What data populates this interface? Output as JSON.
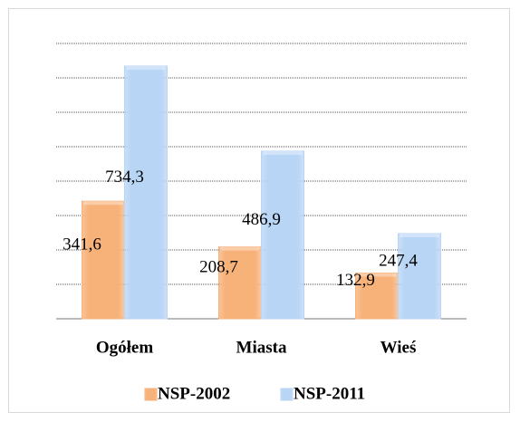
{
  "chart_data": {
    "type": "bar",
    "categories": [
      "Ogółem",
      "Miasta",
      "Wieś"
    ],
    "series": [
      {
        "name": "NSP-2002",
        "color": "#f7b27a",
        "values": [
          341.6,
          208.7,
          132.9
        ],
        "value_labels": [
          "341,6",
          "208,7",
          "132,9"
        ]
      },
      {
        "name": "NSP-2011",
        "color": "#b9d5f5",
        "values": [
          734.3,
          486.9,
          247.4
        ],
        "value_labels": [
          "734,3",
          "486,9",
          "247,4"
        ]
      }
    ],
    "ylim": [
      0,
      800
    ],
    "yticks": [
      0,
      100,
      200,
      300,
      400,
      500,
      600,
      700,
      800
    ],
    "grid": true
  }
}
